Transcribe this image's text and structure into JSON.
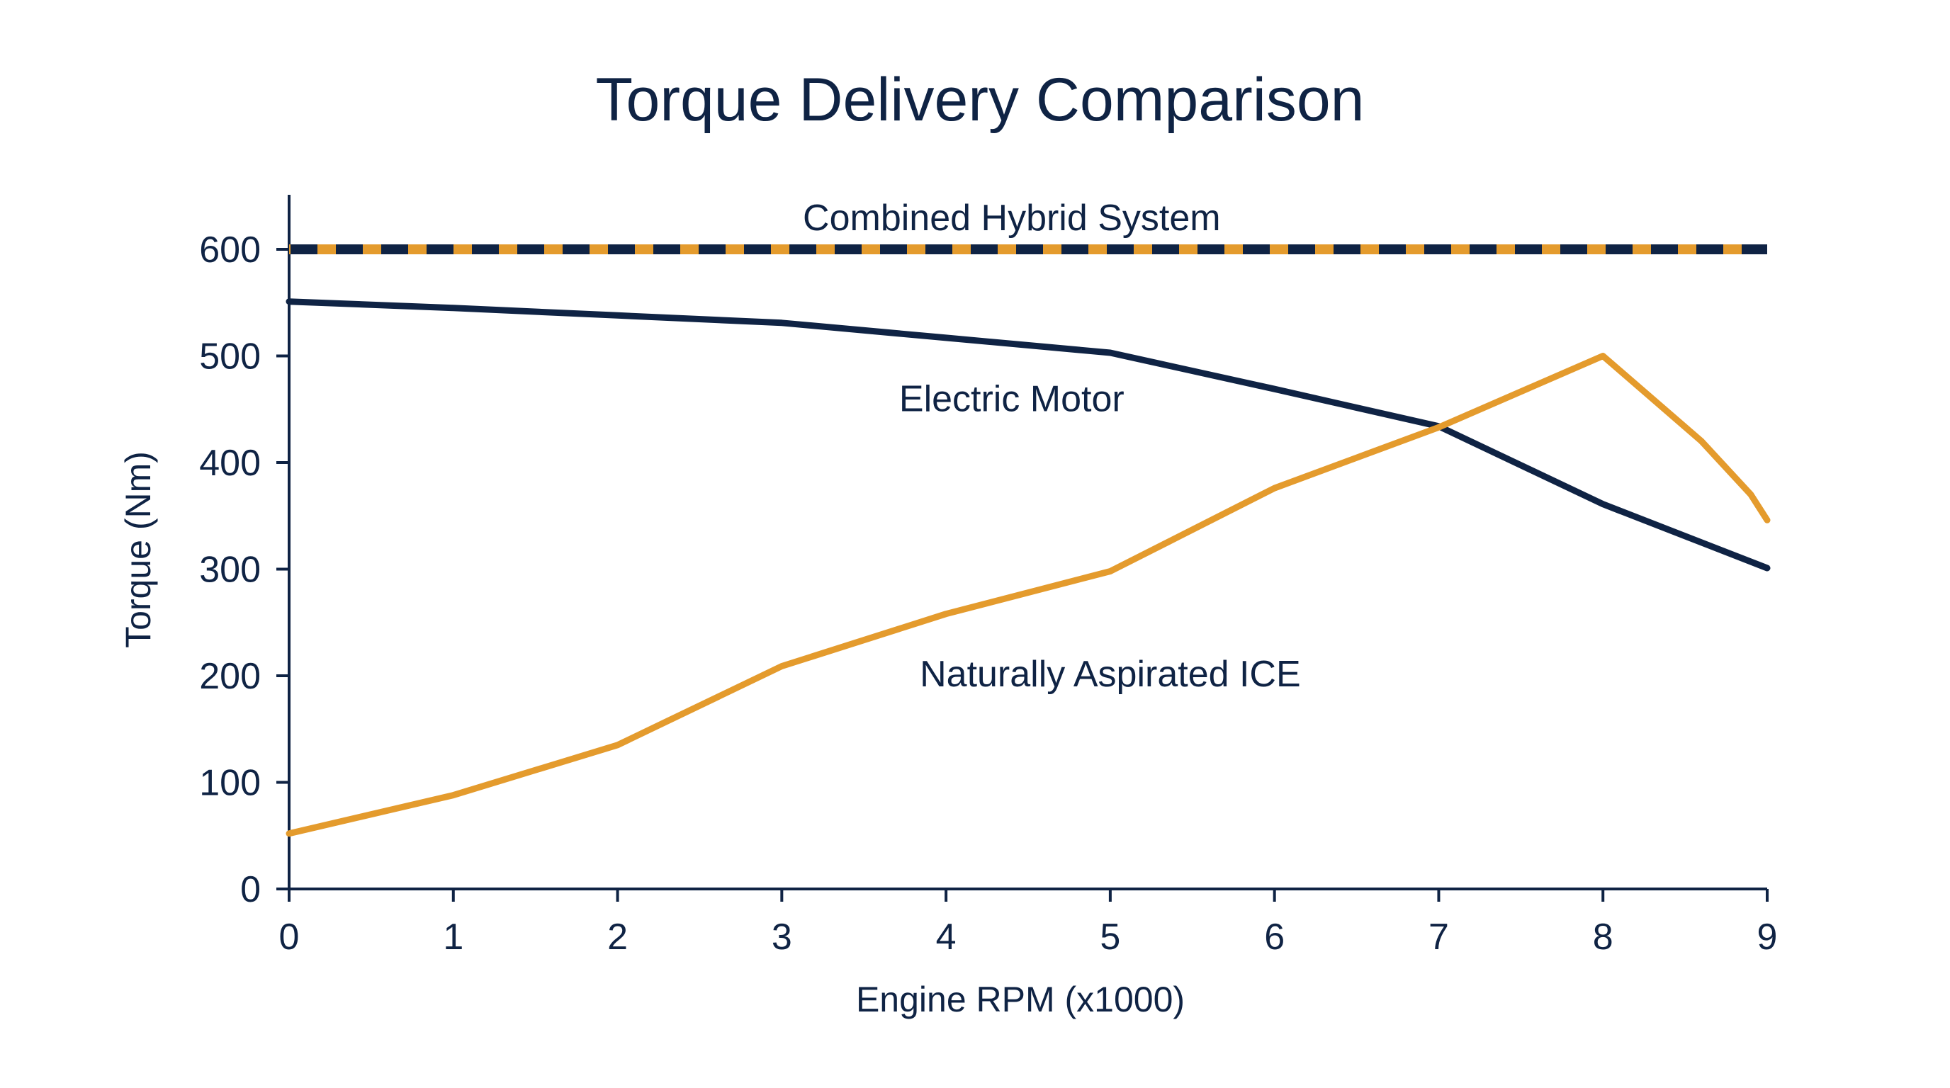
{
  "chart_data": {
    "type": "line",
    "title": "Torque Delivery Comparison",
    "xlabel": "Engine RPM (x1000)",
    "ylabel": "Torque (Nm)",
    "xlim": [
      0,
      9
    ],
    "ylim": [
      0,
      650
    ],
    "x_ticks": [
      0,
      1,
      2,
      3,
      4,
      5,
      6,
      7,
      8,
      9
    ],
    "y_ticks": [
      0,
      100,
      200,
      300,
      400,
      500,
      600
    ],
    "grid": false,
    "legend": "none (series labeled inline on the plot)",
    "series": [
      {
        "name": "Combined Hybrid System",
        "style": "dashed two-tone",
        "color": "#0f2344",
        "accent_color": "#e49b2d",
        "label_at": [
          4.4,
          630
        ],
        "points": [
          [
            0,
            600
          ],
          [
            9,
            600
          ]
        ]
      },
      {
        "name": "Electric Motor",
        "style": "solid",
        "color": "#0f2344",
        "label_at": [
          4.4,
          460
        ],
        "points": [
          [
            0,
            551
          ],
          [
            1,
            545
          ],
          [
            2,
            538
          ],
          [
            3,
            531
          ],
          [
            4,
            517
          ],
          [
            5,
            503
          ],
          [
            6,
            469
          ],
          [
            7,
            434
          ],
          [
            8,
            361
          ],
          [
            9,
            301
          ]
        ]
      },
      {
        "name": "Naturally Aspirated ICE",
        "style": "solid",
        "color": "#e49b2d",
        "label_at": [
          5.0,
          202
        ],
        "points": [
          [
            0,
            52
          ],
          [
            1,
            88
          ],
          [
            2,
            135
          ],
          [
            3,
            209
          ],
          [
            4,
            258
          ],
          [
            5,
            298
          ],
          [
            6,
            376
          ],
          [
            7,
            433
          ],
          [
            8,
            500
          ],
          [
            8.6,
            420
          ],
          [
            8.9,
            370
          ],
          [
            9,
            346
          ]
        ]
      }
    ]
  }
}
